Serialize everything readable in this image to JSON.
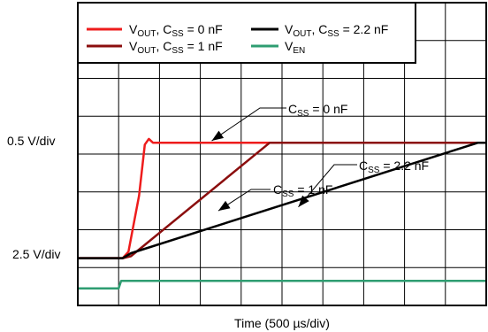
{
  "chart_data": {
    "type": "line",
    "x_axis": {
      "label": "Time (500 µs/div)",
      "divisions": 10,
      "unit": "ms",
      "range": [
        0,
        5.0
      ]
    },
    "y_axis_labels": [
      "0.5 V/div",
      "2.5 V/div"
    ],
    "grid": true,
    "legend_position": "top-left",
    "legend": [
      {
        "main": "V",
        "sub": "OUT",
        "tail": ", C",
        "sub2": "SS",
        "tail2": " = 0 nF"
      },
      {
        "main": "V",
        "sub": "OUT",
        "tail": ", C",
        "sub2": "SS",
        "tail2": " = 2.2 nF"
      },
      {
        "main": "V",
        "sub": "OUT",
        "tail": ", C",
        "sub2": "SS",
        "tail2": " = 1 nF"
      },
      {
        "main": "V",
        "sub": "EN",
        "tail": "",
        "sub2": "",
        "tail2": ""
      }
    ],
    "series": [
      {
        "name": "VOUT, CSS = 0 nF",
        "color": "#ee1c1c",
        "unit": "div",
        "x": [
          0,
          0.55,
          0.62,
          0.75,
          0.82,
          0.87,
          0.92,
          5.0
        ],
        "y": [
          1.25,
          1.25,
          1.42,
          2.9,
          4.25,
          4.4,
          4.3,
          4.3
        ]
      },
      {
        "name": "VOUT, CSS = 1 nF",
        "color": "#8b0e0e",
        "unit": "div",
        "x": [
          0,
          0.55,
          0.65,
          2.35,
          5.0
        ],
        "y": [
          1.25,
          1.25,
          1.3,
          4.3,
          4.3
        ]
      },
      {
        "name": "VOUT, CSS = 2.2 nF",
        "color": "#000000",
        "unit": "div",
        "x": [
          0,
          0.55,
          0.65,
          4.9,
          5.0
        ],
        "y": [
          1.25,
          1.25,
          1.38,
          4.3,
          4.3
        ]
      },
      {
        "name": "VEN",
        "color": "#2e9d71",
        "unit": "div",
        "x": [
          0,
          0.5,
          0.53,
          5.0
        ],
        "y": [
          0.45,
          0.45,
          0.65,
          0.65
        ]
      }
    ],
    "annotations": [
      {
        "main": "C",
        "sub": "SS",
        "tail": " = 0 nF",
        "point_at": {
          "x": 1.64,
          "y": 4.35
        }
      },
      {
        "main": "C",
        "sub": "SS",
        "tail": " = 2.2 nF",
        "point_at": {
          "x": 2.7,
          "y": 2.6
        }
      },
      {
        "main": "C",
        "sub": "SS",
        "tail": " = 1 nF",
        "point_at": {
          "x": 1.72,
          "y": 2.5
        }
      }
    ]
  }
}
